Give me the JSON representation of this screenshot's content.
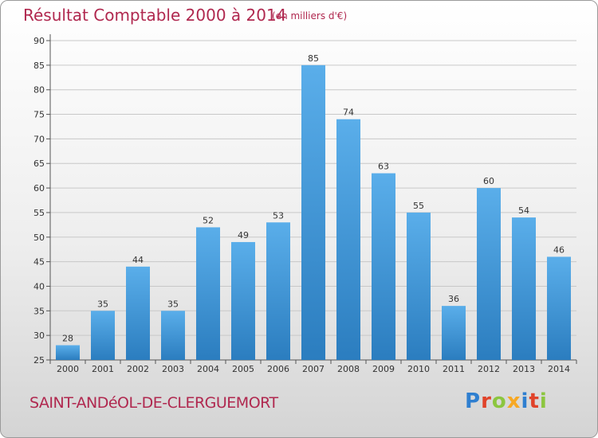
{
  "header": {
    "title": "Résultat Comptable 2000 à 2014",
    "unit": "(en milliers d'€)"
  },
  "footer": {
    "town": "SAINT-ANDéOL-DE-CLERGUEMORT",
    "logo_text": "Proxiti",
    "logo_colors": [
      "#2f7fd0",
      "#e0432a",
      "#8cc63f",
      "#f7a823",
      "#2f7fd0",
      "#e0432a",
      "#8cc63f"
    ]
  },
  "colors": {
    "accent": "#b0284f",
    "bar_top": "#5aaeea",
    "bar_bottom": "#2b7dbf"
  },
  "chart_data": {
    "type": "bar",
    "categories": [
      "2000",
      "2001",
      "2002",
      "2003",
      "2004",
      "2005",
      "2006",
      "2007",
      "2008",
      "2009",
      "2010",
      "2011",
      "2012",
      "2013",
      "2014"
    ],
    "values": [
      28,
      35,
      44,
      35,
      52,
      49,
      53,
      85,
      74,
      63,
      55,
      36,
      60,
      54,
      46
    ],
    "title": "Résultat Comptable 2000 à 2014",
    "xlabel": "",
    "ylabel": "",
    "ylim": [
      25,
      90
    ],
    "yticks": [
      25,
      30,
      35,
      40,
      45,
      50,
      55,
      60,
      65,
      70,
      75,
      80,
      85,
      90
    ],
    "grid": true,
    "data_labels": true
  }
}
